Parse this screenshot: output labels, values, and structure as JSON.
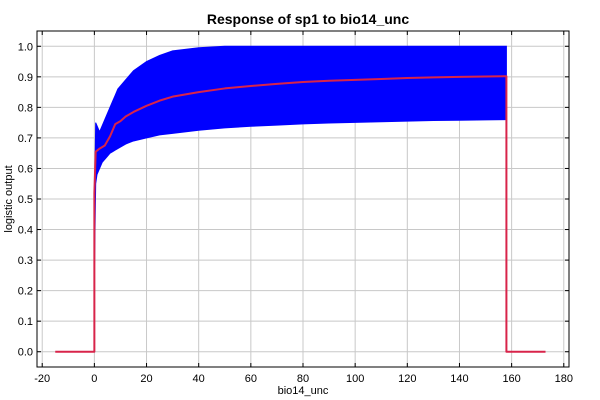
{
  "chart_data": {
    "type": "line",
    "title": "Response of sp1 to bio14_unc",
    "xlabel": "bio14_unc",
    "ylabel": "logistic output",
    "xlim": [
      -22,
      182
    ],
    "ylim": [
      -0.05,
      1.05
    ],
    "xticks": [
      -20,
      0,
      20,
      40,
      60,
      80,
      100,
      120,
      140,
      160,
      180
    ],
    "yticks": [
      0.0,
      0.1,
      0.2,
      0.3,
      0.4,
      0.5,
      0.6,
      0.7,
      0.8,
      0.9,
      1.0
    ],
    "grid": true,
    "colors": {
      "band": "#0000ff",
      "mean": "#d8244a"
    },
    "series": [
      {
        "role": "uncertainty-band",
        "x": [
          0,
          0.5,
          1,
          2,
          3,
          4,
          5,
          6,
          7,
          8,
          9,
          10,
          12,
          15,
          20,
          25,
          30,
          40,
          50,
          60,
          70,
          80,
          90,
          100,
          110,
          120,
          130,
          140,
          150,
          158
        ],
        "lower": [
          0.25,
          0.55,
          0.58,
          0.6,
          0.62,
          0.63,
          0.64,
          0.65,
          0.655,
          0.66,
          0.665,
          0.67,
          0.68,
          0.69,
          0.7,
          0.71,
          0.715,
          0.725,
          0.733,
          0.738,
          0.742,
          0.746,
          0.749,
          0.751,
          0.753,
          0.755,
          0.757,
          0.758,
          0.759,
          0.76
        ],
        "upper": [
          0.45,
          0.75,
          0.74,
          0.72,
          0.74,
          0.76,
          0.78,
          0.8,
          0.82,
          0.84,
          0.86,
          0.87,
          0.89,
          0.92,
          0.95,
          0.97,
          0.985,
          0.995,
          1.0,
          1.0,
          1.0,
          1.0,
          1.0,
          1.0,
          1.0,
          1.0,
          1.0,
          1.0,
          1.0,
          1.0
        ]
      },
      {
        "role": "mean",
        "x": [
          -15,
          0,
          0,
          0.5,
          2,
          4,
          6,
          8,
          10,
          12,
          15,
          20,
          25,
          30,
          40,
          50,
          60,
          70,
          80,
          90,
          100,
          110,
          120,
          130,
          140,
          150,
          157,
          158,
          158,
          173
        ],
        "y": [
          0.0,
          0.0,
          0.52,
          0.655,
          0.665,
          0.675,
          0.705,
          0.745,
          0.755,
          0.77,
          0.785,
          0.805,
          0.822,
          0.835,
          0.85,
          0.862,
          0.87,
          0.877,
          0.883,
          0.887,
          0.89,
          0.893,
          0.896,
          0.898,
          0.9,
          0.901,
          0.902,
          0.902,
          0.0,
          0.0
        ]
      }
    ]
  }
}
